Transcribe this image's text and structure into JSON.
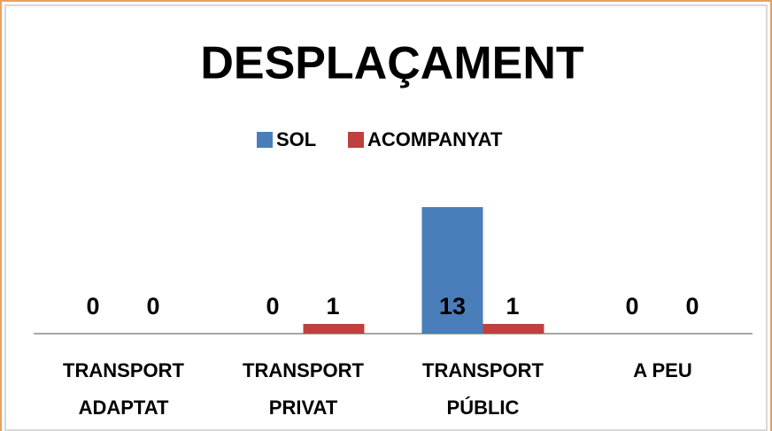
{
  "chart_data": {
    "type": "bar",
    "title": "DESPLAÇAMENT",
    "categories": [
      "TRANSPORT ADAPTAT",
      "TRANSPORT PRIVAT",
      "TRANSPORT PÚBLIC",
      "A PEU"
    ],
    "series": [
      {
        "name": "SOL",
        "color": "#4a7ebb",
        "values": [
          0,
          0,
          13,
          0
        ]
      },
      {
        "name": "ACOMPANYAT",
        "color": "#c0403d",
        "values": [
          0,
          1,
          1,
          0
        ]
      }
    ],
    "legend": "top"
  }
}
